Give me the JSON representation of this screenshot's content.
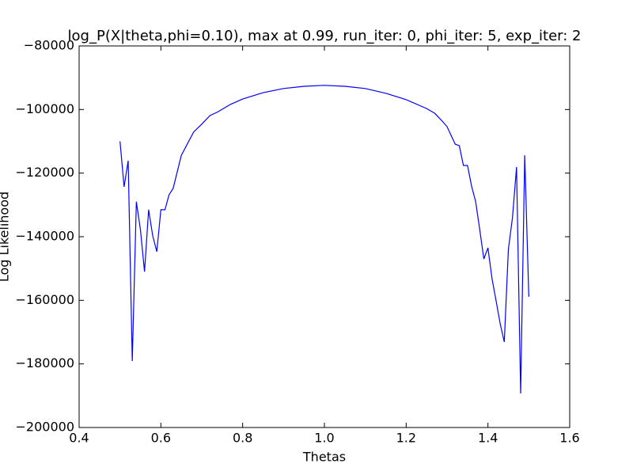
{
  "chart_data": {
    "type": "line",
    "title": "log_P(X|theta,phi=0.10), max at 0.99, run_iter: 0, phi_iter: 5, exp_iter: 2",
    "x_label": "Thetas",
    "y_label": "Log Likelihood",
    "color": "#0000ff",
    "x": [
      0.5,
      0.51,
      0.52,
      0.53,
      0.54,
      0.55,
      0.56,
      0.57,
      0.58,
      0.59,
      0.6,
      0.61,
      0.62,
      0.63,
      0.65,
      0.68,
      0.7,
      0.72,
      0.74,
      0.77,
      0.8,
      0.85,
      0.9,
      0.95,
      1.0,
      1.05,
      1.1,
      1.15,
      1.2,
      1.25,
      1.27,
      1.29,
      1.3,
      1.32,
      1.33,
      1.34,
      1.35,
      1.36,
      1.37,
      1.38,
      1.39,
      1.4,
      1.41,
      1.42,
      1.43,
      1.44,
      1.45,
      1.46,
      1.47,
      1.48,
      1.49,
      1.5
    ],
    "values": [
      -110000,
      -124300,
      -116100,
      -179100,
      -129000,
      -137800,
      -151000,
      -131500,
      -139700,
      -144700,
      -131500,
      -131500,
      -126800,
      -124800,
      -114400,
      -107100,
      -104600,
      -101900,
      -100700,
      -98400,
      -96700,
      -94700,
      -93400,
      -92700,
      -92400,
      -92700,
      -93400,
      -94900,
      -96900,
      -99700,
      -101200,
      -103900,
      -105400,
      -110900,
      -111400,
      -117600,
      -117600,
      -124100,
      -129000,
      -137800,
      -147000,
      -143500,
      -153200,
      -160200,
      -167400,
      -173100,
      -144000,
      -134000,
      -118100,
      -189300,
      -114400,
      -158900
    ],
    "xlim": [
      0.4,
      1.6
    ],
    "ylim": [
      -200000,
      -80000
    ],
    "xticks": [
      0.4,
      0.6,
      0.8,
      {
        "value": 1.0,
        "label": "1.0"
      },
      1.2,
      1.4,
      1.6
    ],
    "yticks": [
      {
        "value": -200000,
        "label": "−200000"
      },
      {
        "value": -180000,
        "label": "−180000"
      },
      {
        "value": -160000,
        "label": "−160000"
      },
      {
        "value": -140000,
        "label": "−140000"
      },
      {
        "value": -120000,
        "label": "−120000"
      },
      {
        "value": -100000,
        "label": "−100000"
      },
      {
        "value": -80000,
        "label": "−80000"
      }
    ]
  }
}
